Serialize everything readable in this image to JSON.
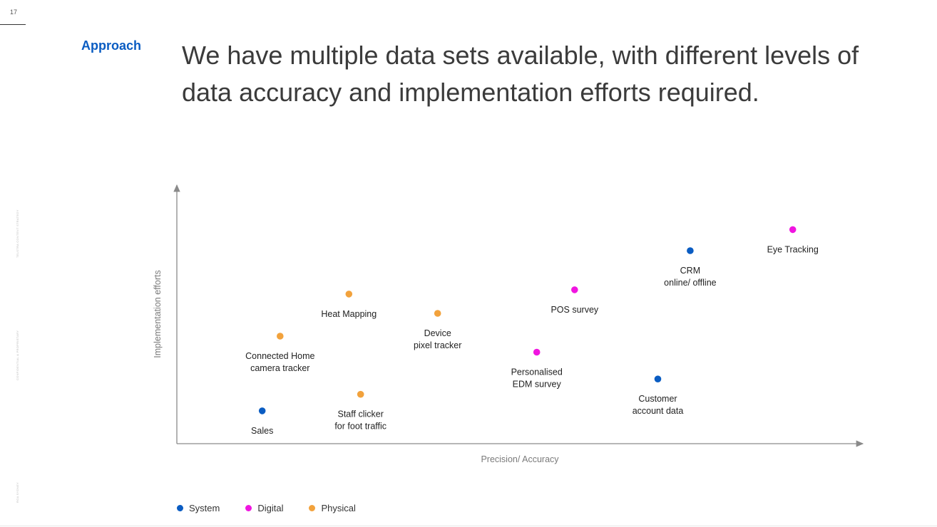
{
  "page": {
    "number": "17",
    "section_label": "Approach",
    "headline_line1": "We have multiple data sets available, with different levels of",
    "headline_line2": "data accuracy and implementation efforts required.",
    "side_text": [
      "TELSTRA CONTENT STRATEGY",
      "CONFIDENTIAL & PROPRIETARY",
      "RGA SYDNEY"
    ]
  },
  "colors": {
    "System": "#0a5cc2",
    "Digital": "#f015e0",
    "Physical": "#f2a23c",
    "axis": "#8a8a8a",
    "accent": "#0a5cc2"
  },
  "legend": [
    {
      "label": "System",
      "category": "System"
    },
    {
      "label": "Digital",
      "category": "Digital"
    },
    {
      "label": "Physical",
      "category": "Physical"
    }
  ],
  "chart_data": {
    "type": "scatter",
    "xlabel": "Precision/ Accuracy",
    "ylabel": "Implementation efforts",
    "xlim": [
      0,
      100
    ],
    "ylim": [
      0,
      100
    ],
    "grid": false,
    "tick_labels": false,
    "legend_position": "bottom-left",
    "points": [
      {
        "label_lines": [
          "Sales"
        ],
        "category": "System",
        "x": 12.4,
        "y": 13.1
      },
      {
        "label_lines": [
          "Connected Home",
          "camera tracker"
        ],
        "category": "Physical",
        "x": 15.0,
        "y": 42.9
      },
      {
        "label_lines": [
          "Heat Mapping"
        ],
        "category": "Physical",
        "x": 25.0,
        "y": 59.7
      },
      {
        "label_lines": [
          "Staff clicker",
          "for foot traffic"
        ],
        "category": "Physical",
        "x": 26.7,
        "y": 19.7
      },
      {
        "label_lines": [
          "Device",
          "pixel tracker"
        ],
        "category": "Physical",
        "x": 37.9,
        "y": 52.0
      },
      {
        "label_lines": [
          "Personalised",
          "EDM survey"
        ],
        "category": "Digital",
        "x": 52.3,
        "y": 36.5
      },
      {
        "label_lines": [
          "POS survey"
        ],
        "category": "Digital",
        "x": 57.8,
        "y": 61.4
      },
      {
        "label_lines": [
          "Customer",
          "account data"
        ],
        "category": "System",
        "x": 69.9,
        "y": 25.8
      },
      {
        "label_lines": [
          "CRM",
          "online/ offline"
        ],
        "category": "System",
        "x": 74.6,
        "y": 77.0
      },
      {
        "label_lines": [
          "Eye Tracking"
        ],
        "category": "Digital",
        "x": 89.5,
        "y": 85.4
      }
    ]
  }
}
